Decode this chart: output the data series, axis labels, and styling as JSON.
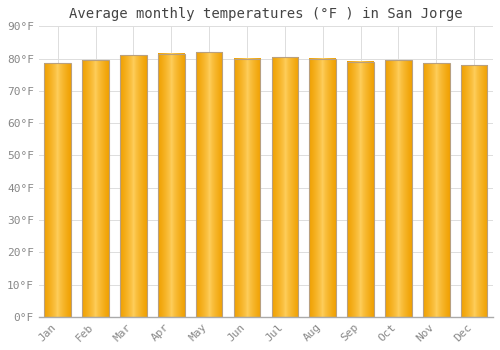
{
  "title": "Average monthly temperatures (°F ) in San Jorge",
  "months": [
    "Jan",
    "Feb",
    "Mar",
    "Apr",
    "May",
    "Jun",
    "Jul",
    "Aug",
    "Sep",
    "Oct",
    "Nov",
    "Dec"
  ],
  "values": [
    78.5,
    79.5,
    81.0,
    81.5,
    82.0,
    80.0,
    80.5,
    80.0,
    79.0,
    79.5,
    78.5,
    78.0
  ],
  "ylim": [
    0,
    90
  ],
  "yticks": [
    0,
    10,
    20,
    30,
    40,
    50,
    60,
    70,
    80,
    90
  ],
  "ytick_labels": [
    "0°F",
    "10°F",
    "20°F",
    "30°F",
    "40°F",
    "50°F",
    "60°F",
    "70°F",
    "80°F",
    "90°F"
  ],
  "bar_color_center": "#FFD060",
  "bar_color_edge": "#F0A000",
  "bar_border_color": "#B8A080",
  "background_color": "#FFFFFF",
  "plot_bg_color": "#FFFFFF",
  "grid_color": "#DDDDDD",
  "title_color": "#444444",
  "tick_color": "#888888",
  "title_fontsize": 10,
  "tick_fontsize": 8,
  "bar_width": 0.7
}
